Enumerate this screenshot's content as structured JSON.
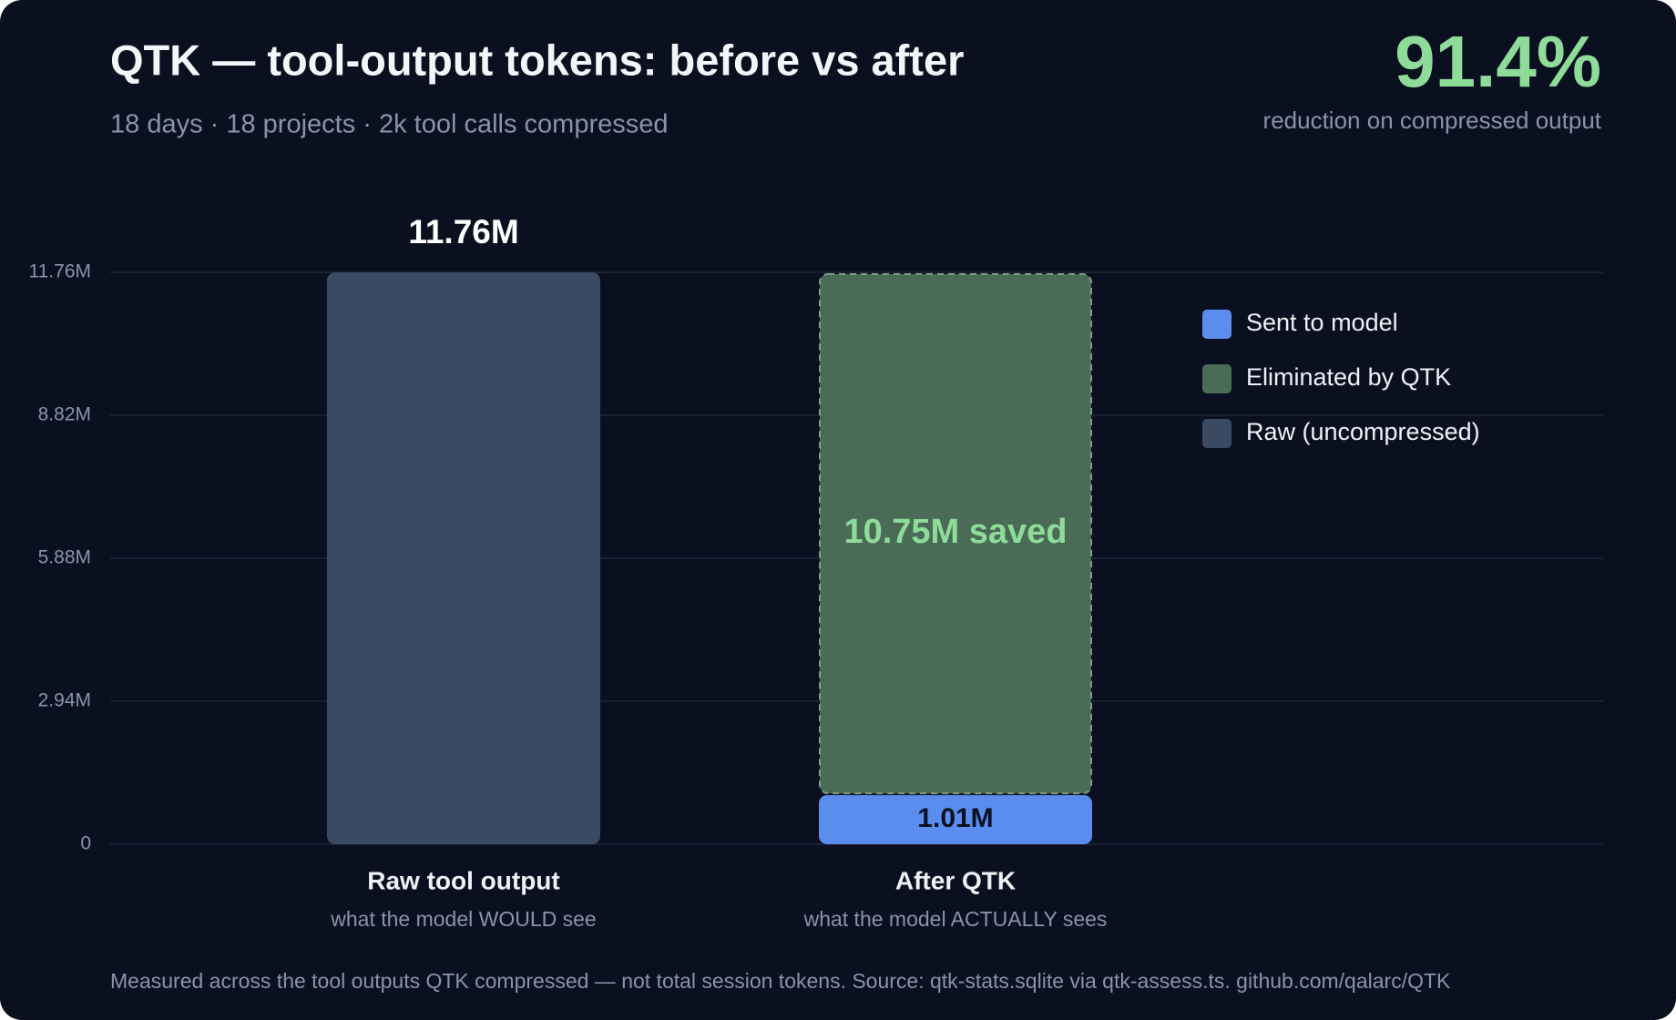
{
  "chart_data": {
    "type": "bar",
    "stacked": true,
    "title": "QTK — tool-output tokens: before vs after",
    "subtitle": "18 days · 18 projects · 2k tool calls compressed",
    "stat": "91.4%",
    "stat_label": "reduction on compressed output",
    "categories": [
      "Raw tool output",
      "After QTK"
    ],
    "category_notes": [
      "what the model WOULD see",
      "what the model ACTUALLY sees"
    ],
    "series": [
      {
        "name": "Sent to model",
        "color": "#5b8def",
        "values": [
          null,
          1.01
        ],
        "value_labels": [
          null,
          "1.01M"
        ],
        "label_position": "inside",
        "label_color": "#0b1120"
      },
      {
        "name": "Eliminated by QTK",
        "color": "#4a6b56",
        "values": [
          null,
          10.75
        ],
        "value_labels": [
          null,
          "10.75M saved"
        ],
        "label_position": "inside",
        "label_color": "#8fdc9a",
        "dashed": true
      },
      {
        "name": "Raw (uncompressed)",
        "color": "#3a4a63",
        "values": [
          11.76,
          null
        ],
        "value_labels": [
          "11.76M",
          null
        ],
        "label_position": "above",
        "label_color": "#ffffff"
      }
    ],
    "ylim": [
      0,
      11.76
    ],
    "yticks": [
      0,
      {
        "value": 2.94,
        "label": "2.94M"
      },
      {
        "value": 5.88,
        "label": "5.88M"
      },
      {
        "value": 8.82,
        "label": "8.82M"
      },
      {
        "value": 11.76,
        "label": "11.76M"
      }
    ],
    "grid": true,
    "legend": "top-right",
    "footnote": "Measured across the tool outputs QTK compressed — not total session tokens. Source: qtk-stats.sqlite via qtk-assess.ts. github.com/qalarc/QTK"
  }
}
